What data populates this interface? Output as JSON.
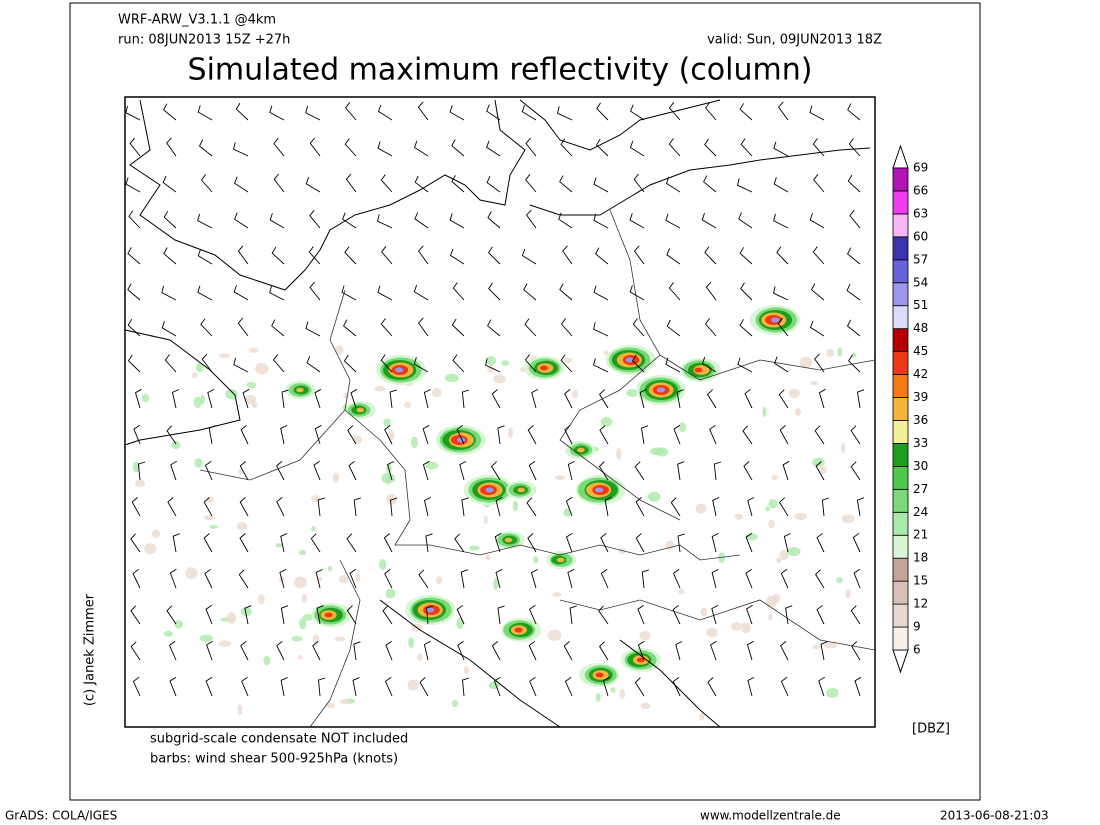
{
  "header": {
    "model": "WRF-ARW_V3.1.1 @4km",
    "run": "run: 08JUN2013 15Z +27h",
    "valid": "valid: Sun, 09JUN2013 18Z",
    "title": "Simulated maximum reflectivity (column)"
  },
  "colorbar": {
    "unit": "[DBZ]",
    "levels": [
      6,
      9,
      12,
      15,
      18,
      21,
      24,
      27,
      30,
      33,
      36,
      39,
      42,
      45,
      48,
      51,
      54,
      57,
      60,
      63,
      66,
      69
    ],
    "colors": [
      "#f7efe8",
      "#e8d8cf",
      "#d7c0b5",
      "#c4a497",
      "#d8f5d6",
      "#aaeaa8",
      "#7ada78",
      "#4fc94c",
      "#1e9e1e",
      "#f5ef96",
      "#f6b43c",
      "#f57a14",
      "#ee3a14",
      "#b40000",
      "#dcdcf8",
      "#9c96ee",
      "#6662dc",
      "#3a34ae",
      "#f6b6f3",
      "#ee3cee",
      "#b014b4"
    ]
  },
  "notes": [
    "subgrid-scale condensate NOT included",
    "barbs: wind shear 500-925hPa (knots)"
  ],
  "credit": "(c) Janek Zimmer",
  "footer": {
    "left": "GrADS: COLA/IGES",
    "center": "www.modellzentrale.de",
    "right": "2013-06-08-21:03"
  }
}
